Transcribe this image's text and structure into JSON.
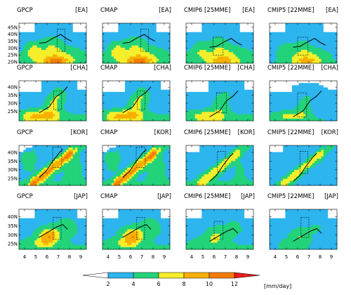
{
  "chart_data": {
    "type": "heatmap",
    "rows": [
      {
        "region": "[EA]",
        "yticks": [
          "20N",
          "25N",
          "30N",
          "35N",
          "40N",
          "45N"
        ],
        "ylim": [
          19,
          48
        ]
      },
      {
        "region": "[CHA]",
        "yticks": [
          "25N",
          "30N",
          "35N",
          "40N"
        ],
        "ylim": [
          19,
          44
        ]
      },
      {
        "region": "[KOR]",
        "yticks": [
          "25N",
          "30N",
          "35N",
          "40N"
        ],
        "ylim": [
          21,
          44
        ]
      },
      {
        "region": "[JAP]",
        "yticks": [
          "25N",
          "30N",
          "35N",
          "40N"
        ],
        "ylim": [
          22,
          44
        ]
      }
    ],
    "columns": [
      {
        "name": "GPCP"
      },
      {
        "name": "CMAP"
      },
      {
        "name": "CMIP6 [25MME]"
      },
      {
        "name": "CMIP5 [22MME]"
      }
    ],
    "xticks": [
      "4",
      "5",
      "6",
      "7",
      "8",
      "9"
    ],
    "xlim": [
      3.5,
      9.5
    ],
    "colorbar": {
      "ticks": [
        "2",
        "4",
        "6",
        "8",
        "10",
        "12"
      ],
      "unit": "[mm/day]",
      "levels": [
        0,
        2,
        4,
        6,
        8,
        10,
        12,
        14
      ],
      "colors": [
        "#ffffff",
        "#2db5ee",
        "#22d37a",
        "#f5ee2a",
        "#f7b000",
        "#f47c00",
        "#e81a1a"
      ]
    },
    "boxes": {
      "obs": [
        [
          6.9,
          7.6,
          0.3,
          0.85
        ],
        [
          6.6,
          7.3,
          0.28,
          0.75
        ],
        [
          6.5,
          7.3,
          0.45,
          0.95
        ],
        [
          6.55,
          7.25,
          0.25,
          0.8
        ]
      ],
      "cmip6": [
        [
          5.9,
          6.8,
          0.2,
          0.65
        ],
        [
          6.2,
          7.1,
          0.2,
          0.7
        ],
        [
          6.3,
          7.0,
          0.35,
          0.85
        ],
        [
          6.0,
          6.8,
          0.25,
          0.7
        ]
      ],
      "cmip5": [
        [
          6.0,
          6.9,
          0.2,
          0.65
        ],
        [
          6.0,
          6.8,
          0.1,
          0.7
        ],
        [
          6.2,
          6.9,
          0.3,
          0.85
        ],
        [
          6.3,
          7.0,
          0.3,
          0.8
        ]
      ]
    }
  }
}
